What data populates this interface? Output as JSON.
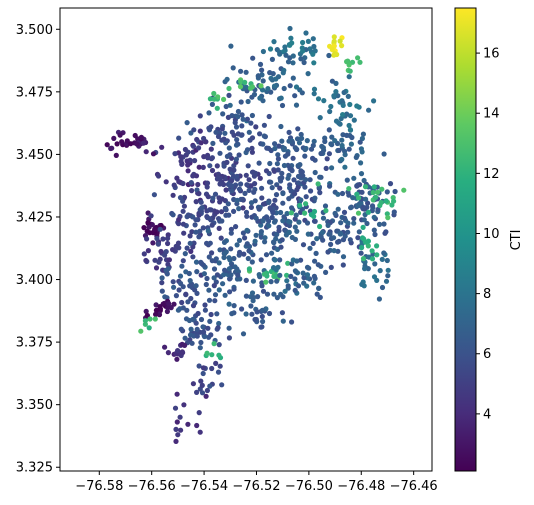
{
  "chart_data": {
    "type": "scatter",
    "title": "",
    "xlabel": "",
    "ylabel": "",
    "xlim": [
      -76.595,
      -76.453
    ],
    "ylim": [
      3.3235,
      3.5085
    ],
    "x_ticks": [
      -76.58,
      -76.56,
      -76.54,
      -76.52,
      -76.5,
      -76.48,
      -76.46
    ],
    "x_tick_labels": [
      "−76.58",
      "−76.56",
      "−76.54",
      "−76.52",
      "−76.50",
      "−76.48",
      "−76.46"
    ],
    "y_ticks": [
      3.325,
      3.35,
      3.375,
      3.4,
      3.425,
      3.45,
      3.475,
      3.5
    ],
    "y_tick_labels": [
      "3.325",
      "3.350",
      "3.375",
      "3.400",
      "3.425",
      "3.450",
      "3.475",
      "3.500"
    ],
    "grid": false,
    "colormap": "viridis",
    "colorbar": {
      "label": "CTI",
      "range": [
        2.1,
        17.5
      ],
      "ticks": [
        4,
        6,
        8,
        10,
        12,
        14,
        16
      ],
      "tick_labels": [
        "4",
        "6",
        "8",
        "10",
        "12",
        "14",
        "16"
      ]
    },
    "colors": {
      "viridis_low": "#440154",
      "viridis_mid": "#21918c",
      "viridis_high": "#fde725"
    },
    "point_clusters": [
      {
        "x": -76.505,
        "y": 3.493,
        "cti": 8,
        "spread_x": 0.01,
        "spread_y": 0.006,
        "count": 30
      },
      {
        "x": -76.49,
        "y": 3.494,
        "cti": 17,
        "spread_x": 0.003,
        "spread_y": 0.003,
        "count": 14
      },
      {
        "x": -76.485,
        "y": 3.485,
        "cti": 12.5,
        "spread_x": 0.004,
        "spread_y": 0.004,
        "count": 8
      },
      {
        "x": -76.515,
        "y": 3.478,
        "cti": 7,
        "spread_x": 0.016,
        "spread_y": 0.01,
        "count": 70
      },
      {
        "x": -76.488,
        "y": 3.47,
        "cti": 8,
        "spread_x": 0.008,
        "spread_y": 0.01,
        "count": 35
      },
      {
        "x": -76.53,
        "y": 3.46,
        "cti": 6,
        "spread_x": 0.014,
        "spread_y": 0.01,
        "count": 70
      },
      {
        "x": -76.508,
        "y": 3.452,
        "cti": 6.5,
        "spread_x": 0.012,
        "spread_y": 0.008,
        "count": 55
      },
      {
        "x": -76.487,
        "y": 3.452,
        "cti": 7,
        "spread_x": 0.008,
        "spread_y": 0.008,
        "count": 35
      },
      {
        "x": -76.57,
        "y": 3.455,
        "cti": 3,
        "spread_x": 0.01,
        "spread_y": 0.003,
        "count": 30
      },
      {
        "x": -76.545,
        "y": 3.445,
        "cti": 4.5,
        "spread_x": 0.01,
        "spread_y": 0.01,
        "count": 55
      },
      {
        "x": -76.53,
        "y": 3.44,
        "cti": 5.5,
        "spread_x": 0.012,
        "spread_y": 0.012,
        "count": 90
      },
      {
        "x": -76.505,
        "y": 3.437,
        "cti": 6,
        "spread_x": 0.012,
        "spread_y": 0.012,
        "count": 90
      },
      {
        "x": -76.478,
        "y": 3.43,
        "cti": 6.5,
        "spread_x": 0.01,
        "spread_y": 0.01,
        "count": 70
      },
      {
        "x": -76.474,
        "y": 3.432,
        "cti": 12.5,
        "spread_x": 0.008,
        "spread_y": 0.006,
        "count": 22
      },
      {
        "x": -76.54,
        "y": 3.425,
        "cti": 5.5,
        "spread_x": 0.012,
        "spread_y": 0.012,
        "count": 90
      },
      {
        "x": -76.515,
        "y": 3.42,
        "cti": 6.5,
        "spread_x": 0.012,
        "spread_y": 0.012,
        "count": 90
      },
      {
        "x": -76.49,
        "y": 3.418,
        "cti": 6.5,
        "spread_x": 0.01,
        "spread_y": 0.01,
        "count": 60
      },
      {
        "x": -76.56,
        "y": 3.42,
        "cti": 2.5,
        "spread_x": 0.004,
        "spread_y": 0.004,
        "count": 25
      },
      {
        "x": -76.555,
        "y": 3.412,
        "cti": 5,
        "spread_x": 0.008,
        "spread_y": 0.01,
        "count": 35
      },
      {
        "x": -76.53,
        "y": 3.405,
        "cti": 6.5,
        "spread_x": 0.012,
        "spread_y": 0.01,
        "count": 75
      },
      {
        "x": -76.515,
        "y": 3.403,
        "cti": 12.5,
        "spread_x": 0.006,
        "spread_y": 0.003,
        "count": 18
      },
      {
        "x": -76.505,
        "y": 3.4,
        "cti": 7,
        "spread_x": 0.01,
        "spread_y": 0.008,
        "count": 45
      },
      {
        "x": -76.475,
        "y": 3.405,
        "cti": 7.5,
        "spread_x": 0.006,
        "spread_y": 0.008,
        "count": 25
      },
      {
        "x": -76.545,
        "y": 3.393,
        "cti": 6,
        "spread_x": 0.01,
        "spread_y": 0.01,
        "count": 50
      },
      {
        "x": -76.52,
        "y": 3.388,
        "cti": 6.5,
        "spread_x": 0.008,
        "spread_y": 0.008,
        "count": 35
      },
      {
        "x": -76.557,
        "y": 3.388,
        "cti": 2.5,
        "spread_x": 0.004,
        "spread_y": 0.004,
        "count": 22
      },
      {
        "x": -76.54,
        "y": 3.378,
        "cti": 6,
        "spread_x": 0.008,
        "spread_y": 0.008,
        "count": 35
      },
      {
        "x": -76.55,
        "y": 3.372,
        "cti": 4,
        "spread_x": 0.005,
        "spread_y": 0.004,
        "count": 15
      },
      {
        "x": -76.54,
        "y": 3.36,
        "cti": 5.5,
        "spread_x": 0.005,
        "spread_y": 0.008,
        "count": 18
      },
      {
        "x": -76.545,
        "y": 3.345,
        "cti": 4.5,
        "spread_x": 0.006,
        "spread_y": 0.008,
        "count": 14
      },
      {
        "x": -76.534,
        "y": 3.473,
        "cti": 13,
        "spread_x": 0.004,
        "spread_y": 0.004,
        "count": 8
      },
      {
        "x": -76.523,
        "y": 3.478,
        "cti": 13,
        "spread_x": 0.004,
        "spread_y": 0.003,
        "count": 8
      },
      {
        "x": -76.56,
        "y": 3.38,
        "cti": 12.5,
        "spread_x": 0.004,
        "spread_y": 0.004,
        "count": 6
      },
      {
        "x": -76.535,
        "y": 3.37,
        "cti": 12.5,
        "spread_x": 0.004,
        "spread_y": 0.004,
        "count": 6
      },
      {
        "x": -76.478,
        "y": 3.413,
        "cti": 12,
        "spread_x": 0.006,
        "spread_y": 0.006,
        "count": 12
      },
      {
        "x": -76.5,
        "y": 3.428,
        "cti": 12,
        "spread_x": 0.006,
        "spread_y": 0.006,
        "count": 10
      }
    ]
  }
}
